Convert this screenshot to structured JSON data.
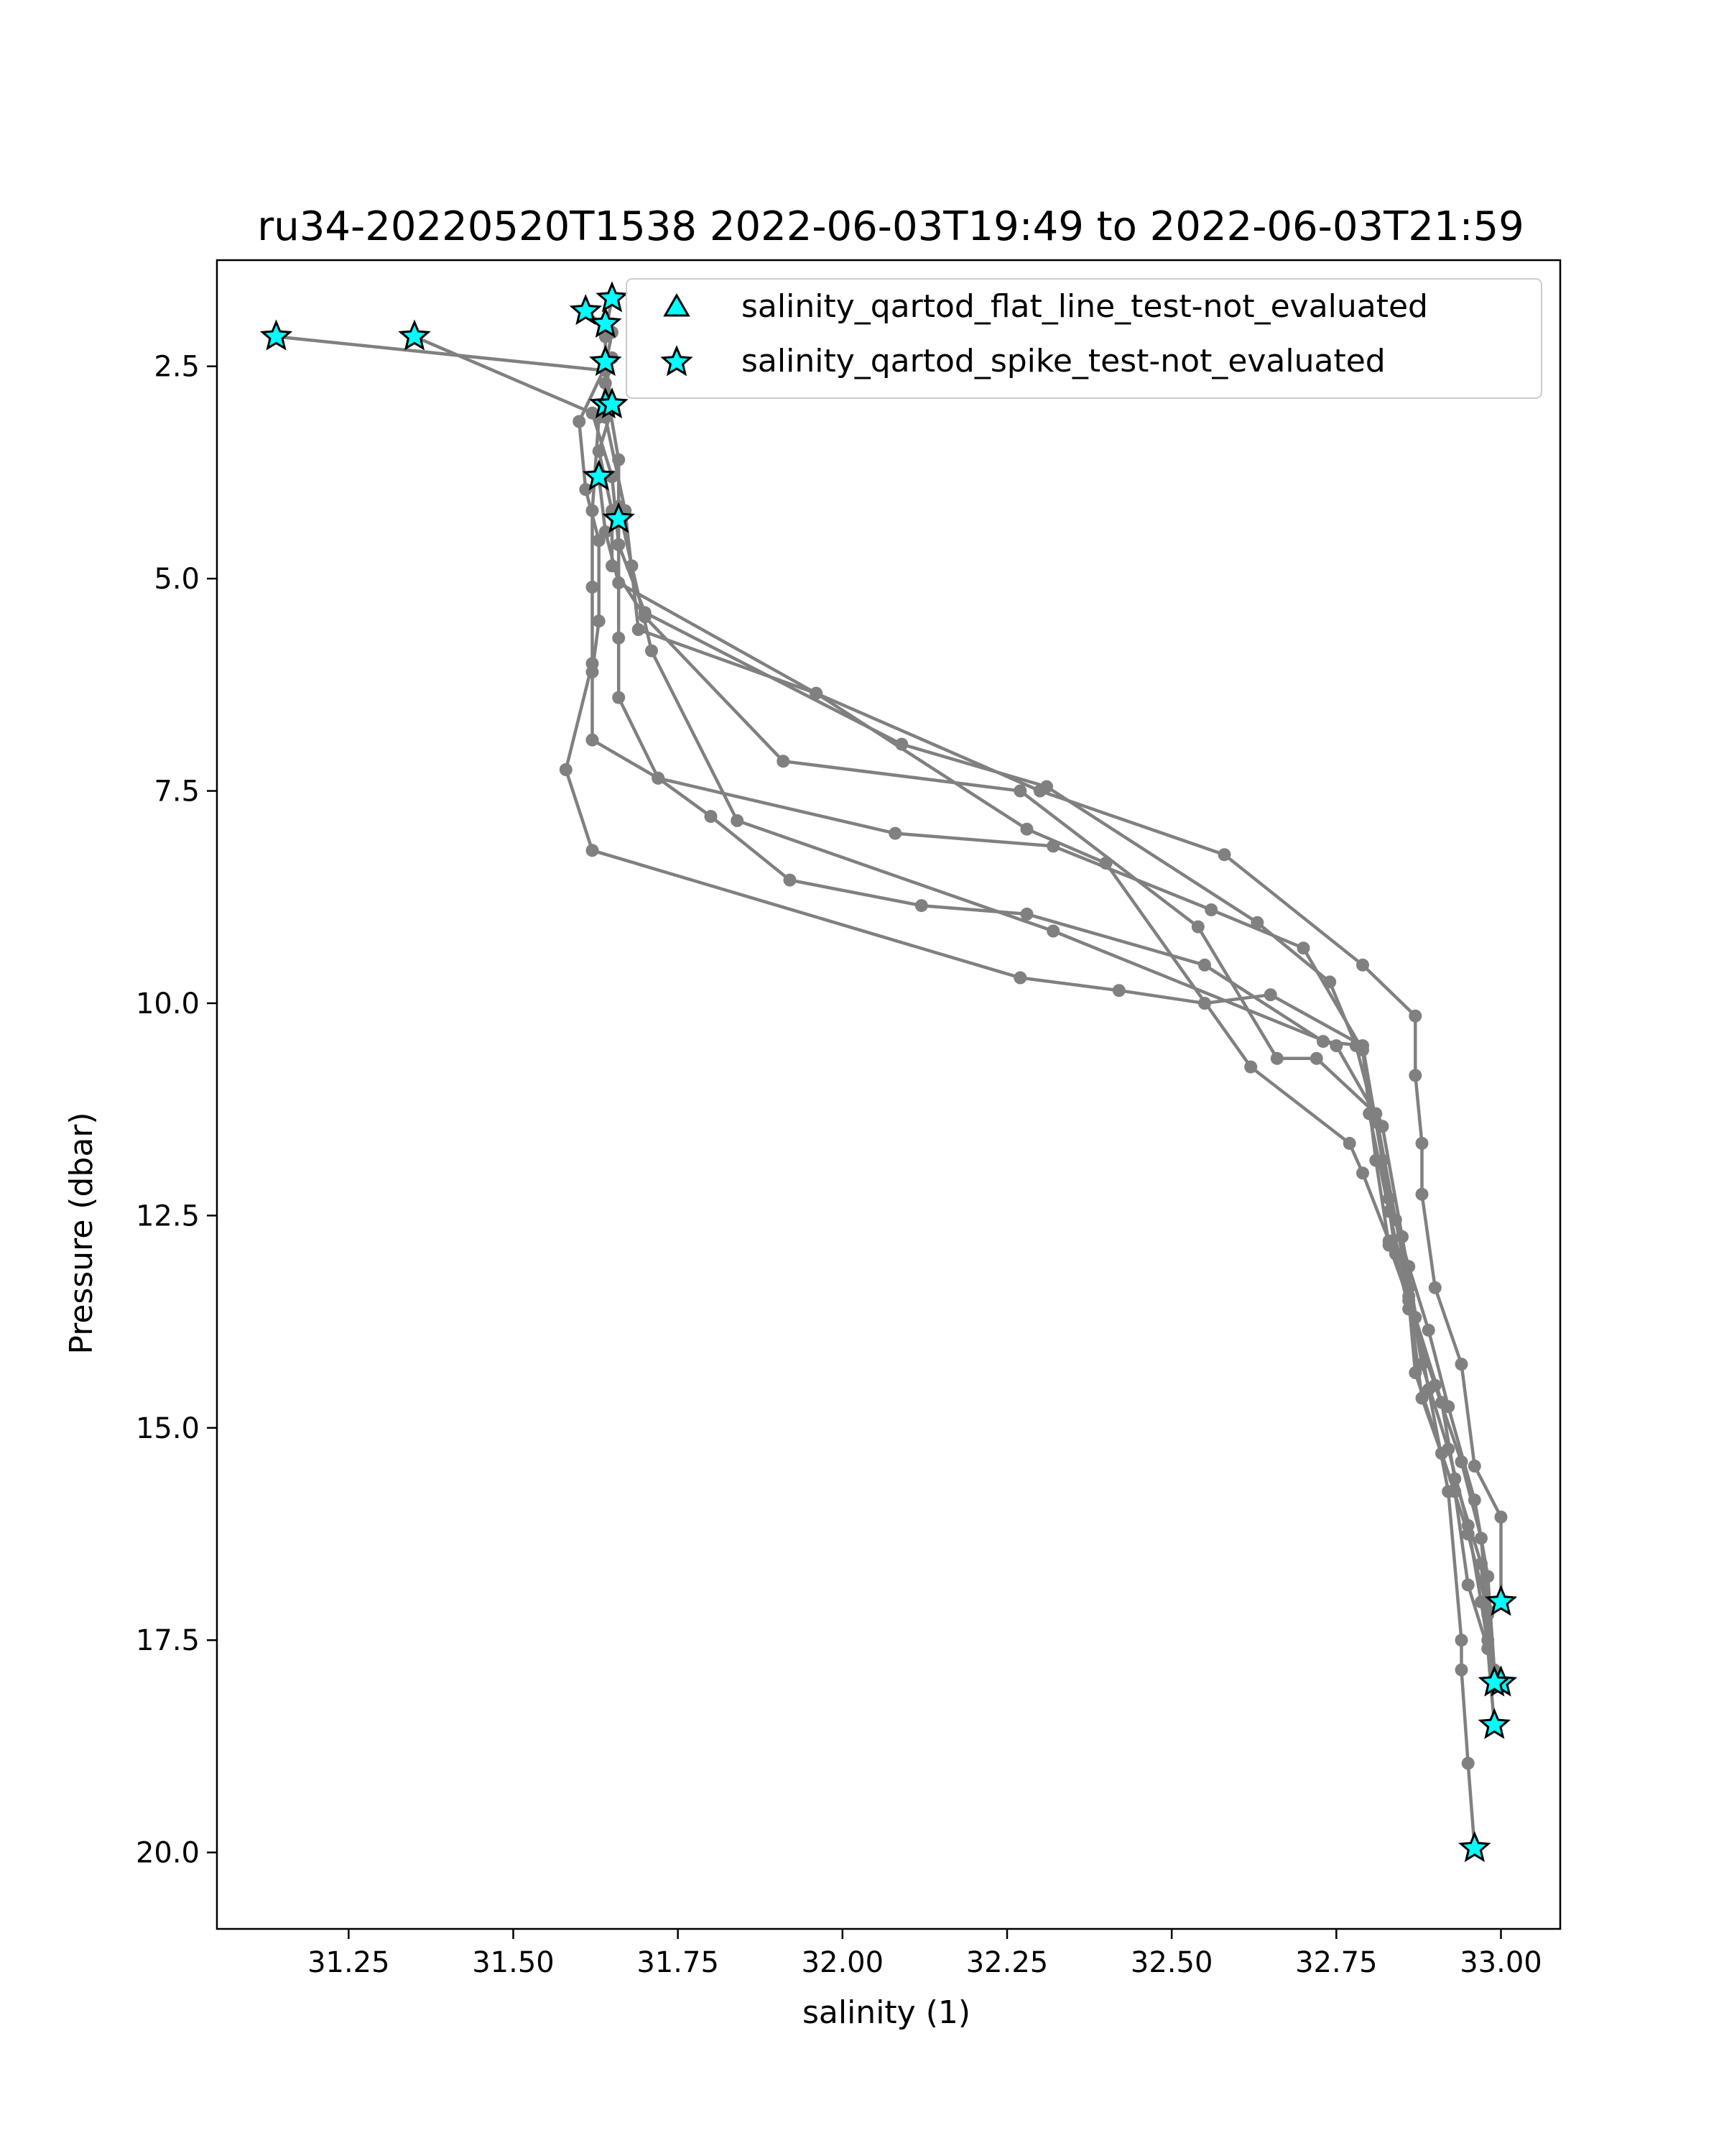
{
  "chart_data": {
    "type": "line",
    "title": "ru34-20220520T1538 2022-06-03T19:49 to 2022-06-03T21:59",
    "xlabel": "salinity (1)",
    "ylabel": "Pressure (dbar)",
    "xlim": [
      31.05,
      33.09
    ],
    "ylim": [
      20.9,
      1.25
    ],
    "y_inverted": true,
    "grid": false,
    "xticks": [
      31.25,
      31.5,
      31.75,
      32.0,
      32.25,
      32.5,
      32.75,
      33.0
    ],
    "xtick_labels": [
      "31.25",
      "31.50",
      "31.75",
      "32.00",
      "32.25",
      "32.50",
      "32.75",
      "33.00"
    ],
    "yticks": [
      2.5,
      5.0,
      7.5,
      10.0,
      12.5,
      15.0,
      17.5,
      20.0
    ],
    "ytick_labels": [
      "2.5",
      "5.0",
      "7.5",
      "10.0",
      "12.5",
      "15.0",
      "17.5",
      "20.0"
    ],
    "line_color": "#808080",
    "marker_color": "#808080",
    "series": [
      {
        "profile": "descent-1",
        "points": [
          [
            31.14,
            2.15
          ],
          [
            31.64,
            2.55
          ],
          [
            31.64,
            3.1
          ],
          [
            31.67,
            4.2
          ],
          [
            31.69,
            5.6
          ],
          [
            31.96,
            6.35
          ],
          [
            32.3,
            7.5
          ],
          [
            32.58,
            8.25
          ],
          [
            32.79,
            9.55
          ],
          [
            32.87,
            10.15
          ],
          [
            32.87,
            10.85
          ],
          [
            32.88,
            11.65
          ],
          [
            32.88,
            12.25
          ],
          [
            32.9,
            13.35
          ],
          [
            32.94,
            14.25
          ],
          [
            32.96,
            15.45
          ],
          [
            33.0,
            16.05
          ],
          [
            33.0,
            17.05
          ]
        ]
      },
      {
        "profile": "ascent-1",
        "points": [
          [
            32.99,
            18.0
          ],
          [
            32.98,
            17.5
          ],
          [
            32.97,
            16.6
          ],
          [
            32.93,
            15.6
          ],
          [
            32.91,
            14.7
          ],
          [
            32.87,
            13.7
          ],
          [
            32.83,
            12.8
          ],
          [
            32.79,
            12.0
          ],
          [
            32.77,
            11.65
          ],
          [
            32.62,
            10.75
          ],
          [
            32.4,
            8.35
          ],
          [
            32.28,
            7.95
          ],
          [
            31.96,
            6.35
          ],
          [
            31.66,
            5.05
          ],
          [
            31.64,
            4.45
          ],
          [
            31.63,
            3.8
          ]
        ]
      },
      {
        "profile": "descent-2",
        "points": [
          [
            31.35,
            2.15
          ],
          [
            31.62,
            3.05
          ],
          [
            31.65,
            3.8
          ],
          [
            31.66,
            4.6
          ],
          [
            31.66,
            5.7
          ],
          [
            31.66,
            6.4
          ],
          [
            31.72,
            7.35
          ],
          [
            31.8,
            7.8
          ],
          [
            31.92,
            8.55
          ],
          [
            32.12,
            8.85
          ],
          [
            32.28,
            8.95
          ],
          [
            32.55,
            9.55
          ],
          [
            32.73,
            10.45
          ],
          [
            32.79,
            10.5
          ],
          [
            32.8,
            11.3
          ],
          [
            32.83,
            12.45
          ],
          [
            32.86,
            13.45
          ],
          [
            32.88,
            14.65
          ],
          [
            32.93,
            15.75
          ],
          [
            32.95,
            16.85
          ],
          [
            32.98,
            17.6
          ],
          [
            32.99,
            18.5
          ]
        ]
      },
      {
        "profile": "ascent-2",
        "points": [
          [
            32.99,
            18.0
          ],
          [
            32.98,
            17.2
          ],
          [
            32.97,
            16.3
          ],
          [
            32.94,
            15.4
          ],
          [
            32.9,
            14.5
          ],
          [
            32.86,
            13.6
          ],
          [
            32.84,
            12.95
          ],
          [
            32.82,
            11.85
          ],
          [
            32.79,
            10.5
          ],
          [
            32.65,
            9.9
          ],
          [
            32.55,
            10.0
          ],
          [
            32.42,
            9.85
          ],
          [
            32.27,
            9.7
          ],
          [
            31.62,
            8.2
          ],
          [
            31.58,
            7.25
          ],
          [
            31.62,
            6.0
          ],
          [
            31.62,
            5.1
          ],
          [
            31.62,
            4.2
          ],
          [
            31.63,
            3.1
          ],
          [
            31.65,
            2.4
          ]
        ]
      },
      {
        "profile": "descent-3",
        "points": [
          [
            31.61,
            1.85
          ],
          [
            31.65,
            2.1
          ],
          [
            31.64,
            2.5
          ],
          [
            31.6,
            3.15
          ],
          [
            31.61,
            3.95
          ],
          [
            31.63,
            4.55
          ],
          [
            31.63,
            5.5
          ],
          [
            31.62,
            6.1
          ],
          [
            31.62,
            6.9
          ],
          [
            31.72,
            7.35
          ],
          [
            32.08,
            8.0
          ],
          [
            32.32,
            8.15
          ],
          [
            32.56,
            8.9
          ],
          [
            32.7,
            9.35
          ],
          [
            32.79,
            10.55
          ],
          [
            32.81,
            11.85
          ],
          [
            32.83,
            12.85
          ],
          [
            32.86,
            13.5
          ],
          [
            32.87,
            14.35
          ],
          [
            32.91,
            15.3
          ],
          [
            32.95,
            16.25
          ],
          [
            32.98,
            17.15
          ],
          [
            32.99,
            18.05
          ]
        ]
      },
      {
        "profile": "ascent-3",
        "points": [
          [
            32.99,
            18.05
          ],
          [
            32.97,
            17.05
          ],
          [
            32.95,
            16.15
          ],
          [
            32.92,
            15.25
          ],
          [
            32.88,
            14.25
          ],
          [
            32.86,
            13.35
          ],
          [
            32.84,
            12.55
          ],
          [
            32.81,
            11.3
          ],
          [
            32.72,
            10.65
          ],
          [
            32.66,
            10.65
          ],
          [
            32.54,
            9.1
          ],
          [
            32.27,
            7.5
          ],
          [
            31.91,
            7.15
          ],
          [
            31.7,
            5.45
          ],
          [
            31.65,
            4.85
          ],
          [
            31.65,
            4.2
          ],
          [
            31.63,
            3.5
          ],
          [
            31.65,
            3.0
          ],
          [
            31.64,
            2.45
          ],
          [
            31.64,
            2.15
          ]
        ]
      },
      {
        "profile": "descent-4",
        "points": [
          [
            31.65,
            1.7
          ],
          [
            31.64,
            2.1
          ],
          [
            31.64,
            2.7
          ],
          [
            31.66,
            3.6
          ],
          [
            31.66,
            4.6
          ],
          [
            31.7,
            5.4
          ],
          [
            32.09,
            6.95
          ],
          [
            32.31,
            7.45
          ],
          [
            32.63,
            9.05
          ],
          [
            32.74,
            9.75
          ],
          [
            32.78,
            10.5
          ],
          [
            32.81,
            11.4
          ],
          [
            32.83,
            12.3
          ],
          [
            32.86,
            13.1
          ],
          [
            32.89,
            13.85
          ],
          [
            32.92,
            14.75
          ],
          [
            32.96,
            15.85
          ],
          [
            32.98,
            16.75
          ],
          [
            32.99,
            17.85
          ]
        ]
      },
      {
        "profile": "ascent-4",
        "points": [
          [
            32.96,
            19.95
          ],
          [
            32.95,
            18.95
          ],
          [
            32.94,
            17.85
          ],
          [
            32.94,
            17.5
          ],
          [
            32.92,
            15.75
          ],
          [
            32.89,
            14.55
          ],
          [
            32.85,
            12.75
          ],
          [
            32.82,
            11.45
          ],
          [
            32.75,
            10.5
          ],
          [
            32.32,
            9.15
          ],
          [
            31.84,
            7.85
          ],
          [
            31.71,
            5.85
          ],
          [
            31.68,
            4.85
          ],
          [
            31.66,
            4.15
          ]
        ]
      }
    ],
    "flagged_points": [
      [
        31.14,
        2.15
      ],
      [
        31.35,
        2.15
      ],
      [
        31.61,
        1.85
      ],
      [
        31.64,
        2.0
      ],
      [
        31.65,
        1.7
      ],
      [
        31.64,
        2.45
      ],
      [
        31.64,
        2.95
      ],
      [
        31.65,
        2.95
      ],
      [
        31.63,
        3.8
      ],
      [
        31.66,
        4.3
      ],
      [
        33.0,
        17.05
      ],
      [
        33.0,
        18.0
      ],
      [
        32.99,
        18.0
      ],
      [
        32.99,
        18.5
      ],
      [
        32.96,
        19.95
      ]
    ],
    "flagged_style": {
      "fill": "#00ffff",
      "edge": "#000000"
    },
    "legend": {
      "position": "top-right",
      "entries": [
        {
          "label": "salinity_qartod_flat_line_test-not_evaluated",
          "marker": "triangle",
          "fill": "#00ffff",
          "edge": "#000000"
        },
        {
          "label": "salinity_qartod_spike_test-not_evaluated",
          "marker": "star",
          "fill": "#00ffff",
          "edge": "#000000"
        }
      ]
    }
  }
}
